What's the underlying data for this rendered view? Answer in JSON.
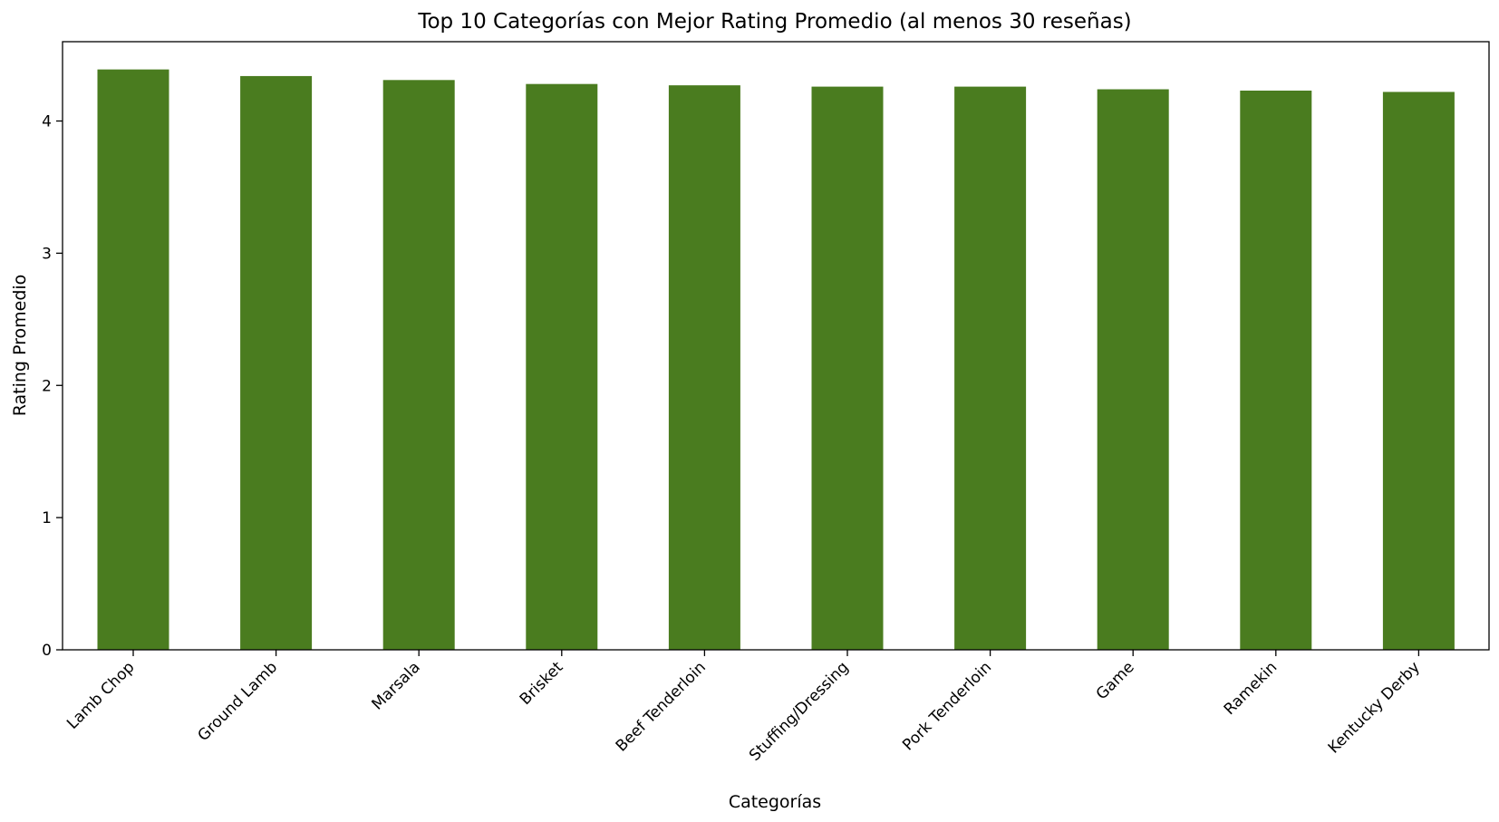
{
  "chart_data": {
    "type": "bar",
    "title": "Top 10 Categorías con Mejor Rating Promedio (al menos 30 reseñas)",
    "xlabel": "Categorías",
    "ylabel": "Rating Promedio",
    "categories": [
      "Lamb Chop",
      "Ground Lamb",
      "Marsala",
      "Brisket",
      "Beef Tenderloin",
      "Stuffing/Dressing",
      "Pork Tenderloin",
      "Game",
      "Ramekin",
      "Kentucky Derby"
    ],
    "values": [
      4.39,
      4.34,
      4.31,
      4.28,
      4.27,
      4.26,
      4.26,
      4.24,
      4.23,
      4.22
    ],
    "ylim": [
      0,
      4.6
    ],
    "yticks": [
      0,
      1,
      2,
      3,
      4
    ],
    "grid": false,
    "bar_color": "#4a7c1f"
  }
}
